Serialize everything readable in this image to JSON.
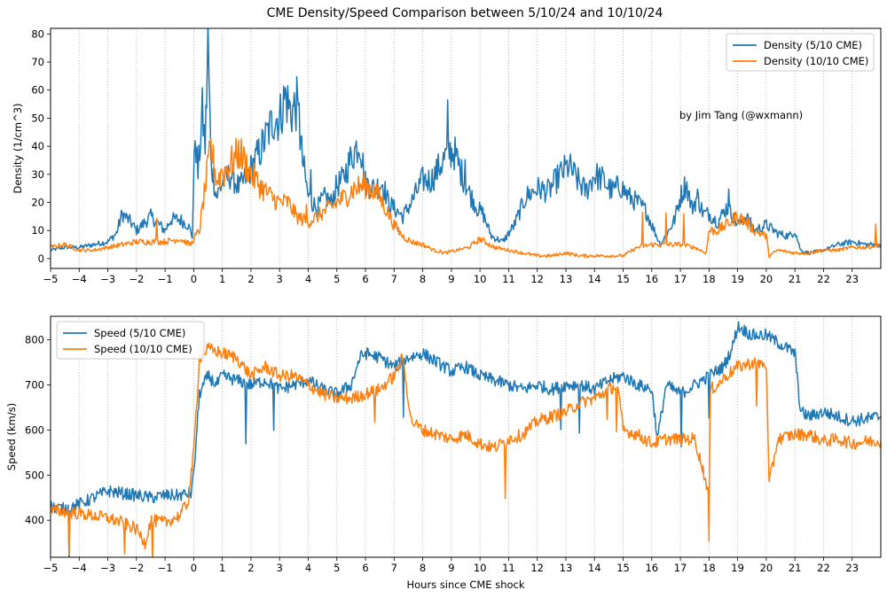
{
  "title": "CME Density/Speed Comparison between 5/10/24 and 10/10/24",
  "colors": {
    "series_5_10": "#1f77b4",
    "series_10_10": "#ff7f0e",
    "grid": "#b0b0b0"
  },
  "chart_data": [
    {
      "type": "line",
      "ylabel": "Density (1/cm^3)",
      "xlabel": "",
      "xlim": [
        -5,
        24
      ],
      "ylim": [
        -3.5,
        82
      ],
      "xticks": [
        -5,
        -4,
        -3,
        -2,
        -1,
        0,
        1,
        2,
        3,
        4,
        5,
        6,
        7,
        8,
        9,
        10,
        11,
        12,
        13,
        14,
        15,
        16,
        17,
        18,
        19,
        20,
        21,
        22,
        23
      ],
      "yticks": [
        0,
        10,
        20,
        30,
        40,
        50,
        60,
        70,
        80
      ],
      "grid": "vertical dotted at each hour",
      "legend": "upper right",
      "annotation": "by Jim Tang (@wxmann)",
      "series": [
        {
          "name": "Density (5/10 CME)",
          "color": "#1f77b4",
          "x": [
            -5,
            -4.5,
            -4,
            -3.5,
            -3,
            -2.7,
            -2.5,
            -2.2,
            -2,
            -1.7,
            -1.5,
            -1.2,
            -1,
            -0.8,
            -0.5,
            -0.2,
            -0.05,
            0.05,
            0.15,
            0.3,
            0.4,
            0.45,
            0.5,
            0.6,
            0.8,
            1,
            1.3,
            1.6,
            2,
            2.3,
            2.6,
            2.8,
            3,
            3.2,
            3.4,
            3.6,
            3.8,
            4,
            4.3,
            4.6,
            4.8,
            5,
            5.2,
            5.5,
            5.8,
            6,
            6.3,
            6.6,
            6.8,
            7,
            7.3,
            7.6,
            8,
            8.3,
            8.6,
            8.9,
            9.1,
            9.3,
            9.6,
            9.9,
            10.1,
            10.4,
            10.8,
            11.2,
            11.6,
            12,
            12.4,
            12.8,
            13.1,
            13.4,
            13.7,
            14,
            14.3,
            14.6,
            14.9,
            15.2,
            15.5,
            15.8,
            16,
            16.3,
            16.6,
            16.8,
            17,
            17.2,
            17.4,
            17.6,
            17.8,
            18,
            18.3,
            18.6,
            18.8,
            19,
            19.3,
            19.6,
            20,
            20.4,
            20.8,
            21,
            21.2,
            21.5,
            22,
            22.5,
            23,
            23.5,
            24
          ],
          "y": [
            3,
            4,
            4,
            5,
            6,
            9,
            16,
            13,
            10,
            13,
            15,
            12,
            10,
            14,
            14,
            12,
            8,
            45,
            30,
            52,
            40,
            58,
            78,
            35,
            22,
            27,
            30,
            25,
            32,
            38,
            45,
            50,
            50,
            58,
            52,
            55,
            35,
            22,
            18,
            22,
            20,
            26,
            28,
            36,
            42,
            27,
            25,
            27,
            20,
            18,
            15,
            20,
            28,
            28,
            33,
            38,
            38,
            32,
            24,
            18,
            16,
            8,
            6,
            12,
            22,
            25,
            24,
            30,
            33,
            28,
            24,
            30,
            28,
            24,
            26,
            22,
            20,
            17,
            12,
            5,
            10,
            14,
            22,
            27,
            18,
            22,
            16,
            16,
            13,
            18,
            16,
            12,
            15,
            10,
            12,
            9,
            8,
            10,
            3,
            2,
            3,
            5,
            6,
            5,
            5
          ]
        },
        {
          "name": "Density (10/10 CME)",
          "color": "#ff7f0e",
          "x": [
            -5,
            -4.5,
            -4,
            -3.5,
            -3,
            -2.5,
            -2,
            -1.5,
            -1,
            -0.5,
            -0.1,
            0,
            0.2,
            0.4,
            0.6,
            0.8,
            1,
            1.3,
            1.6,
            2,
            2.4,
            2.7,
            3,
            3.3,
            3.6,
            4,
            4.3,
            4.6,
            5,
            5.3,
            5.6,
            6,
            6.3,
            6.6,
            7,
            7.3,
            7.6,
            8,
            8.4,
            8.8,
            9.2,
            9.6,
            10,
            10.5,
            11,
            11.5,
            12,
            12.5,
            13,
            13.5,
            14,
            14.5,
            15,
            15.5,
            16,
            16.5,
            17,
            17.5,
            17.9,
            18,
            18.3,
            18.6,
            19,
            19.3,
            19.6,
            20,
            20.1,
            20.4,
            21,
            21.5,
            22,
            22.5,
            23,
            23.5,
            24
          ],
          "y": [
            4,
            5,
            3,
            3,
            4,
            5,
            6,
            6,
            6,
            7,
            5,
            7,
            10,
            25,
            40,
            28,
            30,
            34,
            38,
            30,
            25,
            22,
            20,
            20,
            15,
            13,
            15,
            17,
            20,
            22,
            25,
            26,
            24,
            20,
            12,
            8,
            6,
            5,
            3,
            2,
            3,
            4,
            7,
            4,
            3,
            2,
            1,
            1,
            2,
            1,
            1,
            1,
            1,
            4,
            5,
            5,
            5,
            4,
            2,
            10,
            10,
            12,
            15,
            13,
            10,
            8,
            1,
            3,
            2,
            2,
            3,
            3,
            4,
            4,
            5
          ]
        }
      ]
    },
    {
      "type": "line",
      "ylabel": "Speed (km/s)",
      "xlabel": "Hours since CME shock",
      "xlim": [
        -5,
        24
      ],
      "ylim": [
        318,
        852
      ],
      "xticks": [
        -5,
        -4,
        -3,
        -2,
        -1,
        0,
        1,
        2,
        3,
        4,
        5,
        6,
        7,
        8,
        9,
        10,
        11,
        12,
        13,
        14,
        15,
        16,
        17,
        18,
        19,
        20,
        21,
        22,
        23
      ],
      "yticks": [
        400,
        500,
        600,
        700,
        800
      ],
      "grid": "vertical dotted at each hour",
      "legend": "upper left",
      "series": [
        {
          "name": "Speed (5/10 CME)",
          "color": "#1f77b4",
          "x": [
            -5,
            -4.5,
            -4,
            -3.5,
            -3,
            -2.5,
            -2,
            -1.5,
            -1,
            -0.5,
            -0.1,
            0,
            0.2,
            0.5,
            0.8,
            1,
            1.5,
            2,
            2.5,
            3,
            3.5,
            4,
            4.5,
            5,
            5.5,
            5.8,
            6,
            6.5,
            7,
            7.5,
            8,
            8.5,
            9,
            9.5,
            10,
            10.5,
            11,
            11.5,
            12,
            12.5,
            13,
            13.5,
            14,
            14.5,
            15,
            15.5,
            16,
            16.2,
            16.5,
            17,
            17.5,
            18,
            18.5,
            18.8,
            19,
            19.5,
            20,
            20.5,
            21,
            21.2,
            21.5,
            22,
            22.5,
            23,
            23.5,
            24
          ],
          "y": [
            430,
            425,
            435,
            450,
            465,
            460,
            455,
            450,
            455,
            455,
            460,
            500,
            680,
            720,
            700,
            720,
            710,
            700,
            710,
            690,
            700,
            710,
            690,
            680,
            700,
            760,
            770,
            760,
            740,
            760,
            770,
            750,
            730,
            740,
            720,
            710,
            700,
            690,
            700,
            690,
            700,
            700,
            690,
            710,
            720,
            700,
            690,
            580,
            700,
            680,
            700,
            720,
            740,
            780,
            830,
            810,
            810,
            790,
            770,
            640,
            630,
            640,
            630,
            620,
            625,
            630
          ]
        },
        {
          "name": "Speed (10/10 CME)",
          "color": "#ff7f0e",
          "x": [
            -5,
            -4.5,
            -4,
            -3.5,
            -3,
            -2.5,
            -2,
            -1.7,
            -1.5,
            -1,
            -0.5,
            -0.2,
            0,
            0.2,
            0.5,
            1,
            1.5,
            2,
            2.5,
            3,
            3.5,
            4,
            4.5,
            5,
            5.5,
            6,
            6.5,
            7,
            7.3,
            7.6,
            8,
            8.5,
            9,
            9.5,
            10,
            10.5,
            11,
            11.5,
            12,
            12.5,
            13,
            13.5,
            14,
            14.5,
            14.8,
            15,
            15.5,
            16,
            16.5,
            17,
            17.5,
            18,
            18.05,
            18.3,
            18.6,
            19,
            19.3,
            19.6,
            20,
            20.1,
            20.4,
            21,
            21.5,
            22,
            22.5,
            23,
            23.5,
            24
          ],
          "y": [
            420,
            420,
            415,
            410,
            405,
            395,
            380,
            350,
            400,
            395,
            410,
            440,
            550,
            760,
            780,
            770,
            760,
            720,
            740,
            720,
            720,
            700,
            680,
            670,
            670,
            680,
            690,
            720,
            760,
            620,
            600,
            590,
            580,
            590,
            570,
            560,
            580,
            590,
            620,
            630,
            640,
            660,
            670,
            690,
            700,
            600,
            590,
            570,
            580,
            580,
            580,
            460,
            690,
            700,
            720,
            740,
            745,
            750,
            745,
            480,
            580,
            590,
            590,
            575,
            580,
            570,
            575,
            575
          ]
        }
      ]
    }
  ]
}
